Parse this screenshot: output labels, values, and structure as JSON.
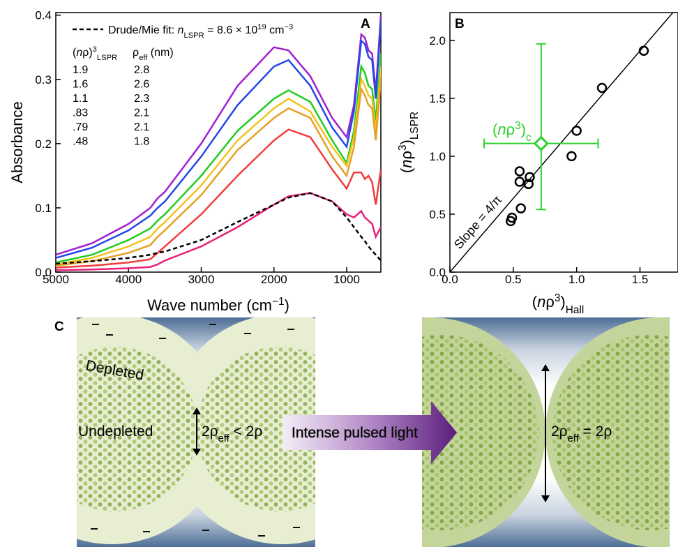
{
  "chart_data": [
    {
      "type": "line",
      "panel": "A",
      "xlabel": [
        "Wave number (cm",
        {
          "sup": "−1"
        },
        ")"
      ],
      "ylabel": "Absorbance",
      "xlim": [
        5000,
        530
      ],
      "ylim": [
        0,
        0.404
      ],
      "xticks": [
        5000,
        4000,
        3000,
        2000,
        1000
      ],
      "yticks": [
        {
          "value": 0,
          "label": "0.0"
        },
        0.1,
        0.2,
        0.3,
        0.4
      ],
      "legend_header": [
        [
          "(",
          {
            "i": "n"
          },
          "ρ)",
          {
            "sup": "3"
          },
          {
            "sub": "LSPR"
          }
        ],
        [
          "ρ",
          {
            "sub": "eff"
          },
          " (nm)"
        ]
      ],
      "x": [
        5000,
        4500,
        4000,
        3700,
        3600,
        3500,
        3000,
        2500,
        2000,
        1800,
        1500,
        1200,
        1000,
        900,
        800,
        750,
        700,
        650,
        600,
        530
      ],
      "series": [
        {
          "name": "1.9",
          "rho_eff": "2.8",
          "color": "#a21fcf",
          "values": [
            0.027,
            0.045,
            0.075,
            0.1,
            0.115,
            0.125,
            0.2,
            0.29,
            0.35,
            0.345,
            0.305,
            0.24,
            0.21,
            0.26,
            0.37,
            0.365,
            0.345,
            0.34,
            0.28,
            0.4
          ]
        },
        {
          "name": "1.6",
          "rho_eff": "2.6",
          "color": "#2447e6",
          "values": [
            0.022,
            0.038,
            0.065,
            0.088,
            0.1,
            0.11,
            0.18,
            0.26,
            0.32,
            0.33,
            0.29,
            0.225,
            0.195,
            0.25,
            0.36,
            0.355,
            0.335,
            0.33,
            0.27,
            0.39
          ]
        },
        {
          "name": "1.1",
          "rho_eff": "2.3",
          "color": "#1fcc1f",
          "values": [
            0.015,
            0.027,
            0.05,
            0.068,
            0.08,
            0.09,
            0.15,
            0.22,
            0.27,
            0.283,
            0.265,
            0.205,
            0.17,
            0.22,
            0.32,
            0.31,
            0.29,
            0.285,
            0.235,
            0.34
          ]
        },
        {
          "name": ".83",
          "rho_eff": "2.1",
          "color": "#f2c21e",
          "values": [
            0.012,
            0.022,
            0.04,
            0.055,
            0.068,
            0.078,
            0.135,
            0.205,
            0.255,
            0.27,
            0.25,
            0.195,
            0.165,
            0.21,
            0.3,
            0.29,
            0.275,
            0.27,
            0.22,
            0.32
          ]
        },
        {
          "name": ".79",
          "rho_eff": "2.1",
          "color": "#e5a024",
          "values": [
            0.01,
            0.017,
            0.03,
            0.042,
            0.055,
            0.065,
            0.12,
            0.19,
            0.24,
            0.255,
            0.24,
            0.18,
            0.15,
            0.195,
            0.285,
            0.275,
            0.26,
            0.255,
            0.205,
            0.3
          ]
        },
        {
          "name": ".48",
          "rho_eff": "1.8",
          "color": "#f23c3c",
          "values": [
            0.007,
            0.01,
            0.015,
            0.02,
            0.03,
            0.04,
            0.09,
            0.15,
            0.205,
            0.222,
            0.21,
            0.16,
            0.13,
            0.155,
            0.155,
            0.145,
            0.15,
            0.14,
            0.105,
            0.16
          ]
        },
        {
          "color": "#e8207a",
          "values": [
            0.003,
            0.004,
            0.006,
            0.008,
            0.012,
            0.018,
            0.04,
            0.07,
            0.105,
            0.118,
            0.123,
            0.11,
            0.09,
            0.085,
            0.095,
            0.085,
            0.08,
            0.075,
            0.055,
            0.07
          ]
        },
        {
          "name_parts": [
            "Drude/Mie fit: ",
            {
              "i": "n"
            },
            {
              "sub": "LSPR"
            },
            " = 8.6 × 10",
            {
              "sup": "19"
            },
            " cm",
            {
              "sup": "−3"
            }
          ],
          "color": "#000000",
          "dashed": true,
          "values": [
            0.013,
            0.017,
            0.022,
            0.027,
            0.03,
            0.032,
            0.05,
            0.078,
            0.105,
            0.116,
            0.123,
            0.11,
            0.085,
            0.07,
            0.055,
            0.048,
            0.04,
            0.033,
            0.027,
            0.018
          ]
        }
      ]
    },
    {
      "type": "scatter",
      "panel": "B",
      "xlabel": [
        "(",
        {
          "i": "n"
        },
        "ρ",
        {
          "sup": "3"
        },
        ")",
        {
          "sub": "Hall"
        }
      ],
      "ylabel": [
        "(",
        {
          "i": "n"
        },
        "ρ",
        {
          "sup": "3"
        },
        ")",
        {
          "sub": "LSPR"
        }
      ],
      "xlim": [
        0,
        1.8
      ],
      "ylim": [
        0,
        2.24
      ],
      "xticks": [
        {
          "value": 0,
          "label": "0.0"
        },
        0.5,
        {
          "value": 1,
          "label": "1.0"
        },
        1.5
      ],
      "yticks": [
        {
          "value": 0,
          "label": "0.0"
        },
        0.5,
        {
          "value": 1,
          "label": "1.0"
        },
        1.5,
        {
          "value": 2,
          "label": "2.0"
        }
      ],
      "points": {
        "color": "#000000",
        "x": [
          0.48,
          0.49,
          0.56,
          0.55,
          0.55,
          0.62,
          0.63,
          0.96,
          1.0,
          1.2,
          1.53
        ],
        "y": [
          0.44,
          0.47,
          0.55,
          0.78,
          0.87,
          0.76,
          0.82,
          1.0,
          1.22,
          1.59,
          1.91
        ]
      },
      "fit_line": {
        "label": "Slope = 4/π",
        "x": [
          0,
          1.76
        ],
        "y": [
          0,
          2.24
        ]
      },
      "highlight": {
        "label": [
          "(",
          {
            "i": "n"
          },
          "ρ",
          {
            "sup": "3"
          },
          ")",
          {
            "sub": "c"
          }
        ],
        "color": "#2bd12b",
        "x": 0.72,
        "y": 1.11,
        "xerr": [
          0.45,
          0.45
        ],
        "yerr": [
          0.57,
          0.86
        ]
      }
    }
  ],
  "panel_c": {
    "label": "C",
    "depleted": "Depleted",
    "undepleted": "Undepleted",
    "left_width": [
      "2ρ",
      {
        "sub": "eff"
      },
      " < 2ρ"
    ],
    "arrow_label": "Intense pulsed light",
    "right_width": [
      "2ρ",
      {
        "sub": "eff"
      },
      " = 2ρ"
    ]
  }
}
